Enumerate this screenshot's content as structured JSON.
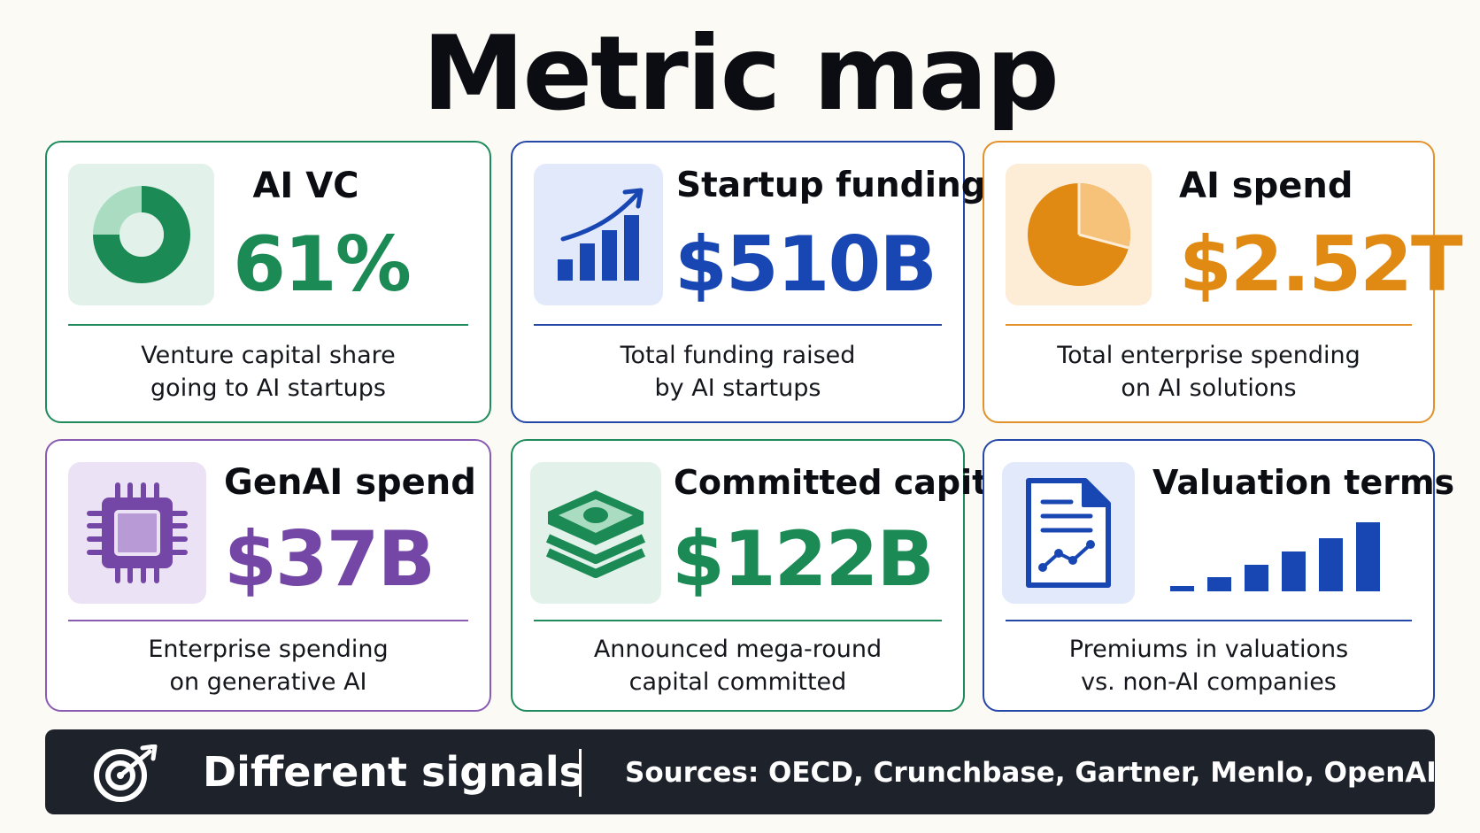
{
  "page": {
    "title": "Metric map"
  },
  "cards": [
    {
      "title": "AI VC",
      "value": "61%",
      "description_lines": [
        "Venture capital share",
        "going to AI startups"
      ],
      "icon": "donut-chart-icon",
      "accent": "#1f8a5b",
      "value_color": "#1b8a55",
      "tile_bg": "#e2f2ea"
    },
    {
      "title": "Startup funding",
      "value": "$510B",
      "description_lines": [
        "Total funding raised",
        "by AI startups"
      ],
      "icon": "growth-bar-chart-icon",
      "accent": "#2447a8",
      "value_color": "#1846b3",
      "tile_bg": "#e2e9fb"
    },
    {
      "title": "AI spend",
      "value": "$2.52T",
      "description_lines": [
        "Total enterprise spending",
        "on AI solutions"
      ],
      "icon": "pie-chart-icon",
      "accent": "#e2912b",
      "value_color": "#e08a14",
      "tile_bg": "#fdecd6"
    },
    {
      "title": "GenAI spend",
      "value": "$37B",
      "description_lines": [
        "Enterprise spending",
        "on generative AI"
      ],
      "icon": "chip-icon",
      "accent": "#8a5bb3",
      "value_color": "#7447a6",
      "tile_bg": "#ece2f5"
    },
    {
      "title": "Committed capital",
      "value": "$122B",
      "description_lines": [
        "Announced mega-round",
        "capital committed"
      ],
      "icon": "money-stack-icon",
      "accent": "#1f8a5b",
      "value_color": "#1b8a55",
      "tile_bg": "#e2f2ea"
    },
    {
      "title": "Valuation terms",
      "description_lines": [
        "Premiums in valuations",
        "vs. non-AI companies"
      ],
      "icon": "document-chart-icon",
      "accent": "#2447a8",
      "tile_bg": "#e2e9fb",
      "bar_values": [
        0.07,
        0.2,
        0.38,
        0.56,
        0.75,
        0.97
      ]
    }
  ],
  "footer": {
    "icon": "target-icon",
    "label": "Different signals",
    "sources": "Sources: OECD, Crunchbase, Gartner, Menlo, OpenAI",
    "background": "#1e232b"
  }
}
